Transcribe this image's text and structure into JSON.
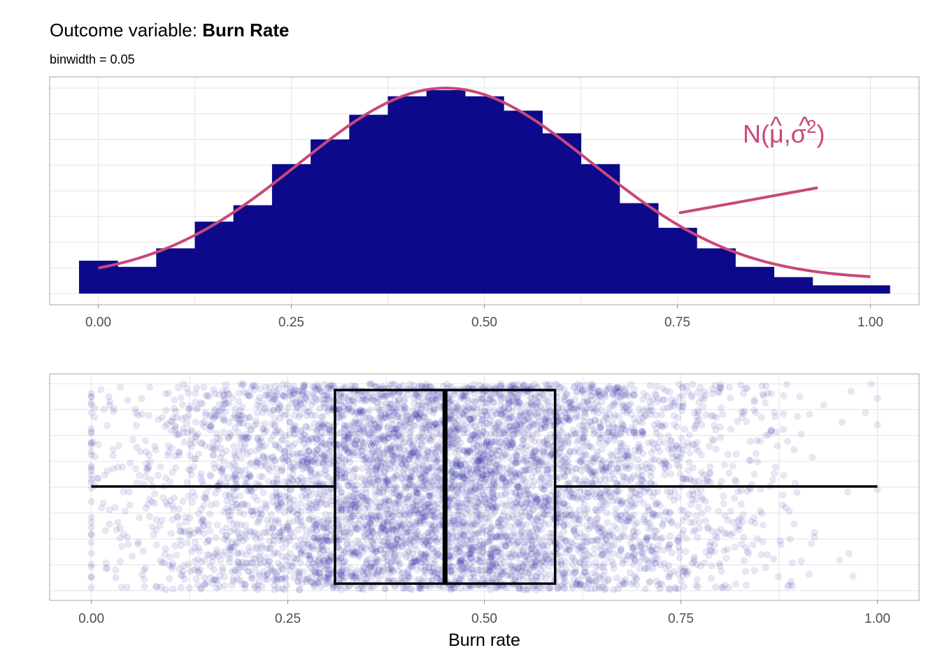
{
  "header": {
    "title_prefix": "Outcome variable: ",
    "title_bold": "Burn Rate",
    "subtitle": "binwidth  = 0.05"
  },
  "colors": {
    "bars": "#0c0a8a",
    "curve": "#c8487a",
    "points": "#1f1aa0",
    "box": "#000000",
    "grid": "#e3e3e3",
    "panel_border": "#b3b3b3"
  },
  "chart_data": [
    {
      "type": "bar",
      "subtype": "histogram",
      "binwidth": 0.05,
      "bin_centers": [
        0.0,
        0.05,
        0.1,
        0.15,
        0.2,
        0.25,
        0.3,
        0.35,
        0.4,
        0.45,
        0.5,
        0.55,
        0.6,
        0.65,
        0.7,
        0.75,
        0.8,
        0.85,
        0.9,
        0.95,
        1.0
      ],
      "relative_heights": [
        0.16,
        0.13,
        0.22,
        0.35,
        0.43,
        0.63,
        0.75,
        0.87,
        0.96,
        0.99,
        0.96,
        0.89,
        0.78,
        0.63,
        0.44,
        0.32,
        0.22,
        0.13,
        0.08,
        0.04,
        0.04
      ],
      "curve": {
        "label": "N(μ̂,σ̂²)",
        "mean": 0.45,
        "sd": 0.19
      },
      "annotation": {
        "text": "N(",
        "mu": "μ",
        "sigma": "σ",
        "sup": "2",
        "hat": "^",
        "comma": ",",
        "close": ")",
        "x": 0.905,
        "arrow_from": [
          0.905,
          0.65
        ],
        "arrow_to": [
          0.75,
          0.4
        ]
      },
      "x_ticks": [
        "0.00",
        "0.25",
        "0.50",
        "0.75",
        "1.00"
      ],
      "x_tick_values": [
        0.0,
        0.25,
        0.5,
        0.75,
        1.0
      ],
      "xlim": [
        -0.063,
        1.063
      ],
      "y_ticks_labeled": false,
      "grid": true
    },
    {
      "type": "box",
      "overlay": "jittered points",
      "whisker_low": 0.0,
      "q1": 0.31,
      "median": 0.45,
      "q3": 0.59,
      "whisker_high": 1.0,
      "points_n": 6000,
      "points_opacity": 0.1,
      "x_ticks": [
        "0.00",
        "0.25",
        "0.50",
        "0.75",
        "1.00"
      ],
      "x_tick_values": [
        0.0,
        0.25,
        0.5,
        0.75,
        1.0
      ],
      "xlim": [
        -0.053,
        1.053
      ],
      "xlabel": "Burn rate",
      "grid": true
    }
  ]
}
